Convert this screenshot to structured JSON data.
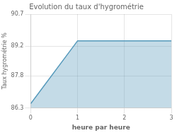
{
  "chart_data": {
    "type": "area",
    "title": "Evolution du taux d'hygrométrie",
    "xlabel": "heure par heure",
    "ylabel": "Taux hygrométrie %",
    "x": [
      0,
      1,
      3
    ],
    "values": [
      86.5,
      89.45,
      89.45
    ],
    "color": "#5599bb",
    "xlim": [
      0,
      3
    ],
    "ylim": [
      86.3,
      90.7
    ],
    "xticks": [
      0,
      1,
      2,
      3
    ],
    "yticks": [
      86.3,
      87.8,
      89.2,
      90.7
    ],
    "grid": true
  }
}
